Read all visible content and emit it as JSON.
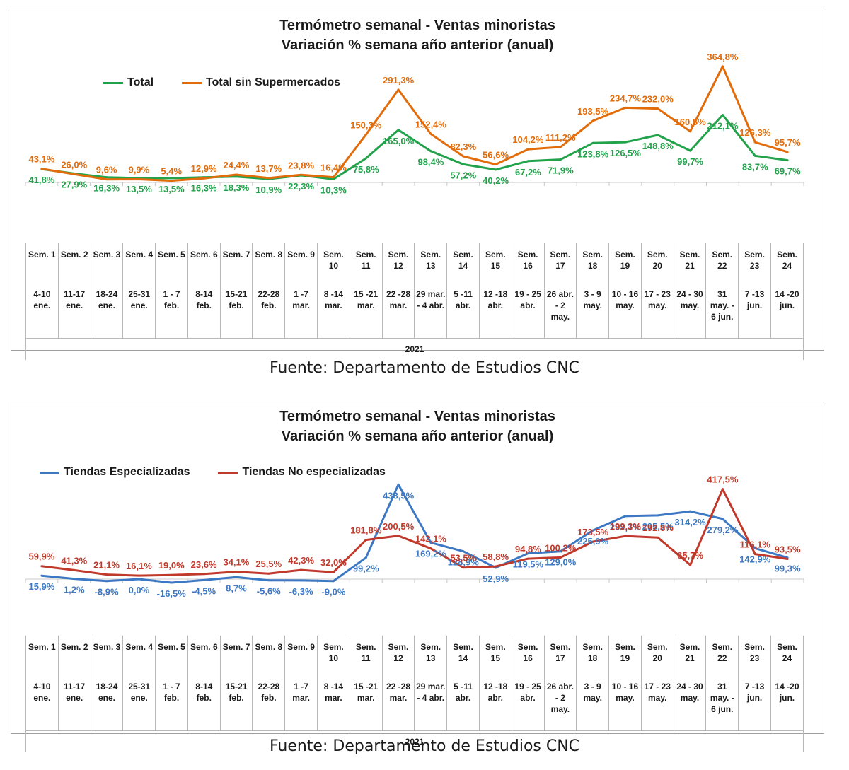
{
  "source": "Fuente: Departamento de Estudios CNC",
  "year": "2021",
  "weeks": [
    {
      "sem": "Sem. 1",
      "dates": "4-10 ene."
    },
    {
      "sem": "Sem. 2",
      "dates": "11-17 ene."
    },
    {
      "sem": "Sem. 3",
      "dates": "18-24 ene."
    },
    {
      "sem": "Sem. 4",
      "dates": "25-31 ene."
    },
    {
      "sem": "Sem. 5",
      "dates": "1 - 7 feb."
    },
    {
      "sem": "Sem. 6",
      "dates": "8-14 feb."
    },
    {
      "sem": "Sem. 7",
      "dates": "15-21 feb."
    },
    {
      "sem": "Sem. 8",
      "dates": "22-28 feb."
    },
    {
      "sem": "Sem. 9",
      "dates": "1 -7 mar."
    },
    {
      "sem": "Sem. 10",
      "dates": "8 -14 mar."
    },
    {
      "sem": "Sem. 11",
      "dates": "15 -21 mar."
    },
    {
      "sem": "Sem. 12",
      "dates": "22 -28 mar."
    },
    {
      "sem": "Sem. 13",
      "dates": "29 mar. - 4 abr."
    },
    {
      "sem": "Sem. 14",
      "dates": "5 -11 abr."
    },
    {
      "sem": "Sem. 15",
      "dates": "12 -18 abr."
    },
    {
      "sem": "Sem. 16",
      "dates": "19 - 25 abr."
    },
    {
      "sem": "Sem. 17",
      "dates": "26 abr. - 2 may."
    },
    {
      "sem": "Sem. 18",
      "dates": "3 - 9 may."
    },
    {
      "sem": "Sem. 19",
      "dates": "10 - 16 may."
    },
    {
      "sem": "Sem. 20",
      "dates": "17 - 23 may."
    },
    {
      "sem": "Sem. 21",
      "dates": "24 - 30 may."
    },
    {
      "sem": "Sem. 22",
      "dates": "31 may. - 6 jun."
    },
    {
      "sem": "Sem. 23",
      "dates": "7 -13 jun."
    },
    {
      "sem": "Sem. 24",
      "dates": "14 -20 jun."
    }
  ],
  "chart_data": [
    {
      "type": "line",
      "title": "Termómetro semanal - Ventas minoristas",
      "subtitle": "Variación % semana año anterior (anual)",
      "legend_position": "top-left",
      "grid": false,
      "categories": [
        "Sem. 1",
        "Sem. 2",
        "Sem. 3",
        "Sem. 4",
        "Sem. 5",
        "Sem. 6",
        "Sem. 7",
        "Sem. 8",
        "Sem. 9",
        "Sem. 10",
        "Sem. 11",
        "Sem. 12",
        "Sem. 13",
        "Sem. 14",
        "Sem. 15",
        "Sem. 16",
        "Sem. 17",
        "Sem. 18",
        "Sem. 19",
        "Sem. 20",
        "Sem. 21",
        "Sem. 22",
        "Sem. 23",
        "Sem. 24"
      ],
      "ylim": [
        -50,
        400
      ],
      "series": [
        {
          "name": "Total",
          "color": "#22a24a",
          "label_position": "below",
          "values": [
            41.8,
            27.9,
            16.3,
            13.5,
            13.5,
            16.3,
            18.3,
            10.9,
            22.3,
            10.3,
            75.8,
            165.0,
            98.4,
            57.2,
            40.2,
            67.2,
            71.9,
            123.8,
            126.5,
            148.8,
            99.7,
            212.1,
            83.7,
            69.7
          ],
          "labels": [
            "41,8%",
            "27,9%",
            "16,3%",
            "13,5%",
            "13,5%",
            "16,3%",
            "18,3%",
            "10,9%",
            "22,3%",
            "10,3%",
            "75,8%",
            "165,0%",
            "98,4%",
            "57,2%",
            "40,2%",
            "67,2%",
            "71,9%",
            "123,8%",
            "126,5%",
            "148,8%",
            "99,7%",
            "212,1%",
            "83,7%",
            "69,7%"
          ]
        },
        {
          "name": "Total sin Supermercados",
          "color": "#e36c0a",
          "label_position": "above",
          "values": [
            43.1,
            26.0,
            9.6,
            9.9,
            5.4,
            12.9,
            24.4,
            13.7,
            23.8,
            16.4,
            150.3,
            291.3,
            152.4,
            82.3,
            56.6,
            104.2,
            111.2,
            193.5,
            234.7,
            232.0,
            160.5,
            364.8,
            126.3,
            95.7
          ],
          "labels": [
            "43,1%",
            "26,0%",
            "9,6%",
            "9,9%",
            "5,4%",
            "12,9%",
            "24,4%",
            "13,7%",
            "23,8%",
            "16,4%",
            "150,3%",
            "291,3%",
            "152,4%",
            "82,3%",
            "56,6%",
            "104,2%",
            "111,2%",
            "193,5%",
            "234,7%",
            "232,0%",
            "160,5%",
            "364,8%",
            "126,3%",
            "95,7%"
          ]
        }
      ]
    },
    {
      "type": "line",
      "title": "Termómetro semanal - Ventas minoristas",
      "subtitle": "Variación % semana año anterior (anual)",
      "legend_position": "top-left",
      "grid": false,
      "categories": [
        "Sem. 1",
        "Sem. 2",
        "Sem. 3",
        "Sem. 4",
        "Sem. 5",
        "Sem. 6",
        "Sem. 7",
        "Sem. 8",
        "Sem. 9",
        "Sem. 10",
        "Sem. 11",
        "Sem. 12",
        "Sem. 13",
        "Sem. 14",
        "Sem. 15",
        "Sem. 16",
        "Sem. 17",
        "Sem. 18",
        "Sem. 19",
        "Sem. 20",
        "Sem. 21",
        "Sem. 22",
        "Sem. 23",
        "Sem. 24"
      ],
      "ylim": [
        -50,
        450
      ],
      "series": [
        {
          "name": "Tiendas Especializadas",
          "color": "#3c78c3",
          "label_position": "below",
          "values": [
            15.9,
            1.2,
            -8.9,
            0.0,
            -16.5,
            -4.5,
            8.7,
            -5.6,
            -6.3,
            -9.0,
            99.2,
            438.5,
            169.2,
            128.9,
            52.9,
            119.5,
            129.0,
            225.9,
            292.1,
            295.5,
            314.2,
            279.2,
            142.9,
            99.3
          ],
          "labels": [
            "15,9%",
            "1,2%",
            "-8,9%",
            "0,0%",
            "-16,5%",
            "-4,5%",
            "8,7%",
            "-5,6%",
            "-6,3%",
            "-9,0%",
            "99,2%",
            "438,5%",
            "169,2%",
            "128,9%",
            "52,9%",
            "119,5%",
            "129,0%",
            "225,9%",
            "292,1%",
            "295,5%",
            "314,2%",
            "279,2%",
            "142,9%",
            "99,3%"
          ]
        },
        {
          "name": "Tiendas No especializadas",
          "color": "#c0392b",
          "label_position": "above",
          "values": [
            59.9,
            41.3,
            21.1,
            16.1,
            19.0,
            23.6,
            34.1,
            25.5,
            42.3,
            32.0,
            181.8,
            200.5,
            142.1,
            53.5,
            58.8,
            94.8,
            100.2,
            173.5,
            199.3,
            192.8,
            65.7,
            417.5,
            116.1,
            93.5
          ],
          "labels": [
            "59,9%",
            "41,3%",
            "21,1%",
            "16,1%",
            "19,0%",
            "23,6%",
            "34,1%",
            "25,5%",
            "42,3%",
            "32,0%",
            "181,8%",
            "200,5%",
            "142,1%",
            "53,5%",
            "58,8%",
            "94,8%",
            "100,2%",
            "173,5%",
            "199,3%",
            "192,8%",
            "65,7%",
            "417,5%",
            "116,1%",
            "93,5%"
          ]
        }
      ]
    }
  ]
}
